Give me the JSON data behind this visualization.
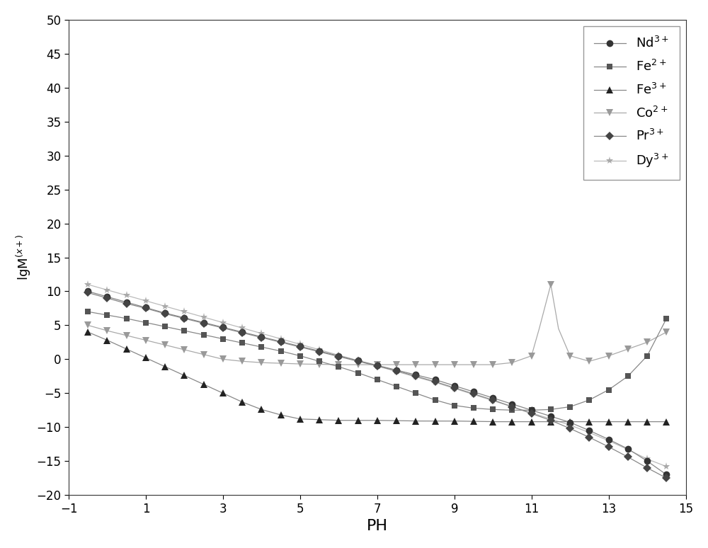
{
  "xlabel": "PH",
  "ylabel": "lgM$^{(x+)}$",
  "xlim": [
    -1,
    15
  ],
  "ylim": [
    -20,
    50
  ],
  "xticks": [
    -1,
    1,
    3,
    5,
    7,
    9,
    11,
    13,
    15
  ],
  "yticks": [
    -20,
    -15,
    -10,
    -5,
    0,
    5,
    10,
    15,
    20,
    25,
    30,
    35,
    40,
    45,
    50
  ],
  "background": "#ffffff",
  "colors": {
    "Nd": "#333333",
    "Fe2": "#555555",
    "Fe3": "#222222",
    "Co": "#999999",
    "Pr": "#444444",
    "Dy": "#aaaaaa"
  },
  "line_colors": {
    "Nd": "#888888",
    "Fe2": "#888888",
    "Fe3": "#888888",
    "Co": "#aaaaaa",
    "Pr": "#888888",
    "Dy": "#bbbbbb"
  }
}
